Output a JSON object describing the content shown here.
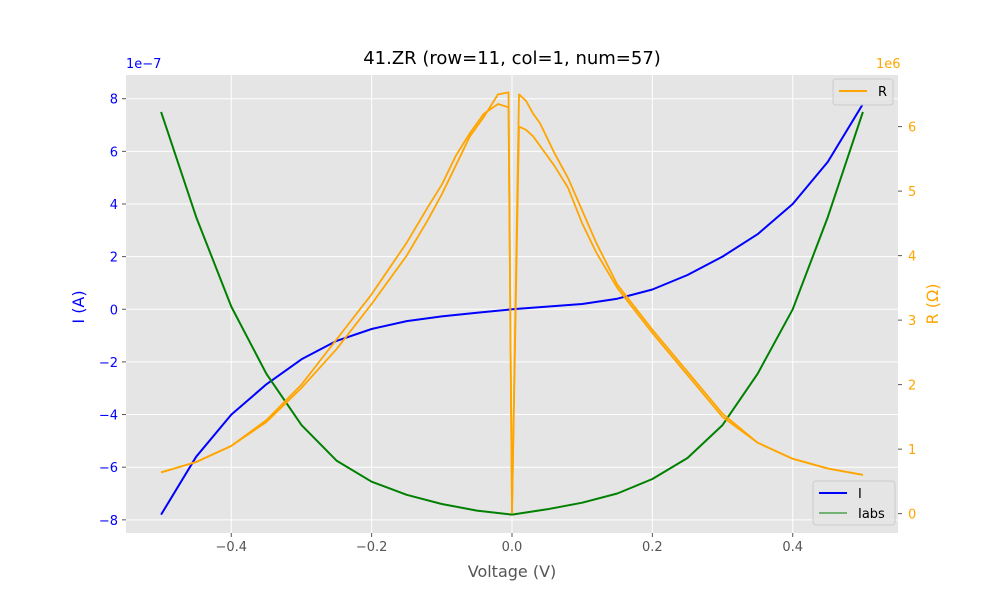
{
  "chart_data": {
    "type": "line",
    "title": "41.ZR (row=11, col=1, num=57)",
    "xlabel": "Voltage (V)",
    "ylabel_left": "I (A)",
    "ylabel_right": "R (Ω)",
    "left_axis_multiplier": "1e−7",
    "right_axis_multiplier": "1e6",
    "xlim": [
      -0.55,
      0.55
    ],
    "ylim_left": [
      -8.5,
      8.9
    ],
    "ylim_right": [
      -0.3,
      6.8
    ],
    "x_ticks": [
      -0.4,
      -0.2,
      0.0,
      0.2,
      0.4
    ],
    "x_tick_labels": [
      "−0.4",
      "−0.2",
      "0.0",
      "0.2",
      "0.4"
    ],
    "left_ticks": [
      -8,
      -6,
      -4,
      -2,
      0,
      2,
      4,
      6,
      8
    ],
    "left_tick_labels": [
      "−8",
      "−6",
      "−4",
      "−2",
      "0",
      "2",
      "4",
      "6",
      "8"
    ],
    "right_ticks": [
      0,
      1,
      2,
      3,
      4,
      5,
      6
    ],
    "right_tick_labels": [
      "0",
      "1",
      "2",
      "3",
      "4",
      "5",
      "6"
    ],
    "grid": true,
    "legend_left_axis": {
      "placement": "lower-right",
      "entries": [
        {
          "label": "I",
          "color": "#0000ff"
        },
        {
          "label": "Iabs",
          "color": "#008000"
        }
      ]
    },
    "legend_right_axis": {
      "placement": "upper-right",
      "entries": [
        {
          "label": "R",
          "color": "#ffa500"
        }
      ]
    },
    "series": [
      {
        "name": "I",
        "axis": "left",
        "unit": "1e-7 A",
        "color": "#0000ff",
        "x": [
          -0.5,
          -0.45,
          -0.4,
          -0.35,
          -0.3,
          -0.25,
          -0.2,
          -0.15,
          -0.1,
          -0.05,
          0.0,
          0.05,
          0.1,
          0.15,
          0.2,
          0.25,
          0.3,
          0.35,
          0.4,
          0.45,
          0.5
        ],
        "y": [
          -7.8,
          -5.6,
          -4.0,
          -2.85,
          -1.9,
          -1.2,
          -0.75,
          -0.45,
          -0.27,
          -0.13,
          0.0,
          0.1,
          0.2,
          0.4,
          0.75,
          1.3,
          2.0,
          2.85,
          4.0,
          5.6,
          7.8
        ]
      },
      {
        "name": "Iabs",
        "axis": "left",
        "unit": "1e-7 A",
        "color": "#008000",
        "x": [
          -0.5,
          -0.45,
          -0.4,
          -0.35,
          -0.3,
          -0.25,
          -0.2,
          -0.15,
          -0.1,
          -0.05,
          0.0,
          0.05,
          0.1,
          0.15,
          0.2,
          0.25,
          0.3,
          0.35,
          0.4,
          0.45,
          0.5
        ],
        "y": [
          7.5,
          3.5,
          0.1,
          -2.45,
          -4.4,
          -5.75,
          -6.55,
          -7.05,
          -7.4,
          -7.65,
          -7.8,
          -7.6,
          -7.35,
          -7.0,
          -6.45,
          -5.65,
          -4.4,
          -2.45,
          0.0,
          3.5,
          7.5
        ]
      },
      {
        "name": "R",
        "axis": "right",
        "unit": "1e6 Ω",
        "color": "#ffa500",
        "segments": [
          {
            "x": [
              -0.5,
              -0.45,
              -0.4,
              -0.35,
              -0.3,
              -0.25,
              -0.2,
              -0.15,
              -0.12,
              -0.1,
              -0.08,
              -0.06,
              -0.04,
              -0.02,
              -0.005,
              0.0
            ],
            "y": [
              0.64,
              0.8,
              1.05,
              1.42,
              1.95,
              2.55,
              3.25,
              4.0,
              4.55,
              4.95,
              5.4,
              5.85,
              6.15,
              6.5,
              6.53,
              0.0
            ]
          },
          {
            "x": [
              -0.5,
              -0.45,
              -0.4,
              -0.35,
              -0.3,
              -0.25,
              -0.2,
              -0.15,
              -0.12,
              -0.1,
              -0.08,
              -0.06,
              -0.04,
              -0.02,
              -0.005,
              0.0
            ],
            "y": [
              0.64,
              0.8,
              1.05,
              1.45,
              2.0,
              2.7,
              3.4,
              4.2,
              4.75,
              5.1,
              5.55,
              5.9,
              6.2,
              6.35,
              6.3,
              0.0
            ]
          },
          {
            "x": [
              0.0,
              0.01,
              0.02,
              0.03,
              0.04,
              0.06,
              0.08,
              0.1,
              0.12,
              0.15,
              0.2,
              0.25,
              0.3,
              0.35,
              0.4,
              0.45,
              0.5
            ],
            "y": [
              0.0,
              6.5,
              6.4,
              6.2,
              6.05,
              5.6,
              5.2,
              4.7,
              4.2,
              3.55,
              2.85,
              2.2,
              1.55,
              1.1,
              0.85,
              0.7,
              0.6
            ]
          },
          {
            "x": [
              0.0,
              0.01,
              0.02,
              0.03,
              0.04,
              0.06,
              0.08,
              0.1,
              0.12,
              0.15,
              0.2,
              0.25,
              0.3,
              0.35,
              0.4,
              0.45,
              0.5
            ],
            "y": [
              0.0,
              6.0,
              5.95,
              5.85,
              5.7,
              5.4,
              5.05,
              4.5,
              4.05,
              3.5,
              2.8,
              2.15,
              1.5,
              1.1,
              0.85,
              0.7,
              0.6
            ]
          }
        ]
      }
    ]
  }
}
